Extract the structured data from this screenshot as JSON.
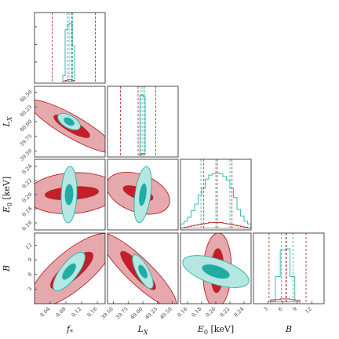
{
  "colors": {
    "red_edge": "#b22222",
    "red_fill_outer": "#e5a9ad",
    "red_fill_inner": "#c41e2a",
    "teal_edge": "#2ab0a8",
    "teal_fill_outer": "#b5e6e2",
    "teal_fill_inner": "#1fada3",
    "grey_hist": "#999999"
  },
  "chart_data": {
    "type": "corner",
    "params": [
      {
        "key": "fs",
        "label": "f_*",
        "range": [
          0.0,
          0.18
        ],
        "ticks": [
          "0.04",
          "0.08",
          "0.12",
          "0.16"
        ],
        "tick_values": [
          0.04,
          0.08,
          0.12,
          0.16
        ]
      },
      {
        "key": "Lx",
        "label": "L_X",
        "range": [
          39.4,
          40.6
        ],
        "ticks": [
          "39.50",
          "39.75",
          "40.00",
          "40.25",
          "40.50"
        ],
        "tick_values": [
          39.5,
          39.75,
          40.0,
          40.25,
          40.5
        ]
      },
      {
        "key": "E0",
        "label": "E_0 [keV]",
        "range": [
          0.15,
          0.25
        ],
        "ticks": [
          "0.16",
          "0.18",
          "0.20",
          "0.22",
          "0.24"
        ],
        "tick_values": [
          0.16,
          0.18,
          0.2,
          0.22,
          0.24
        ]
      },
      {
        "key": "B",
        "label": "B",
        "range": [
          0.0,
          14.5
        ],
        "ticks": [
          "3",
          "6",
          "9",
          "12"
        ],
        "tick_values": [
          3,
          6,
          9,
          12
        ]
      }
    ],
    "series": [
      {
        "color": "red",
        "means": [
          0.095,
          39.92,
          0.202,
          6.8
        ],
        "quantiles": [
          [
            0.045,
            0.155
          ],
          [
            39.62,
            40.22
          ],
          [
            0.183,
            0.223
          ],
          [
            3.2,
            10.8
          ]
        ]
      },
      {
        "color": "teal",
        "means": [
          0.088,
          40.0,
          0.2,
          6.6
        ],
        "quantiles": [
          [
            0.083,
            0.097
          ],
          [
            39.97,
            40.03
          ],
          [
            0.179,
            0.22
          ],
          [
            5.7,
            8.1
          ]
        ]
      }
    ],
    "hist_fs": {
      "bins": [
        0.072,
        0.078,
        0.084,
        0.09,
        0.096,
        0.102
      ],
      "teal": [
        0.1,
        0.8,
        0.88,
        0.9,
        0.55,
        0.05
      ],
      "red": [
        0.02,
        0.03,
        0.04,
        0.04,
        0.03,
        0.02
      ]
    },
    "hist_Lx": {
      "bins": [
        39.95,
        39.98,
        40.01,
        40.04
      ],
      "teal": [
        0.92,
        0.93,
        0.9,
        0.05
      ],
      "red": [
        0.03,
        0.04,
        0.04,
        0.03
      ]
    },
    "hist_E0": {
      "bins": [
        0.15,
        0.155,
        0.16,
        0.165,
        0.17,
        0.175,
        0.18,
        0.185,
        0.19,
        0.195,
        0.2,
        0.205,
        0.21,
        0.215,
        0.22,
        0.225,
        0.23,
        0.235,
        0.24,
        0.245,
        0.25
      ],
      "teal": [
        0.08,
        0.12,
        0.18,
        0.28,
        0.38,
        0.52,
        0.62,
        0.76,
        0.82,
        0.84,
        0.85,
        0.84,
        0.8,
        0.74,
        0.62,
        0.48,
        0.3,
        0.2,
        0.12,
        0.08
      ],
      "red": [
        0.02,
        0.03,
        0.04,
        0.05,
        0.06,
        0.07,
        0.08,
        0.09,
        0.1,
        0.1,
        0.1,
        0.1,
        0.09,
        0.08,
        0.07,
        0.06,
        0.05,
        0.04,
        0.03,
        0.02
      ]
    },
    "hist_B": {
      "bins": [
        3.5,
        4.5,
        5.5,
        6.5,
        7.5,
        8.5,
        9.5
      ],
      "teal": [
        0.05,
        0.4,
        0.8,
        0.82,
        0.4,
        0.04
      ],
      "red": [
        0.03,
        0.05,
        0.06,
        0.06,
        0.05,
        0.04
      ]
    }
  }
}
